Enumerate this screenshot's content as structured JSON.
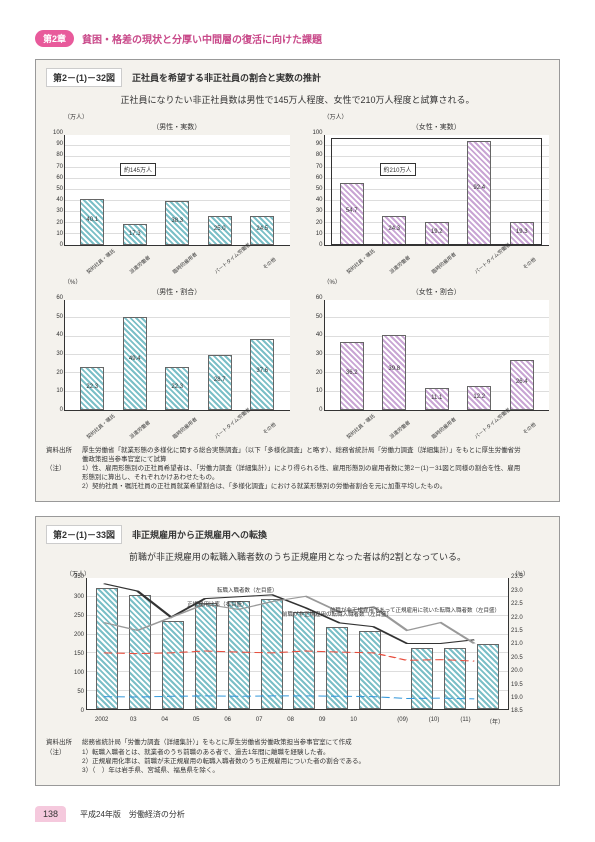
{
  "chapter": {
    "badge": "第2章",
    "title": "貧困・格差の現状と分厚い中間層の復活に向けた課題"
  },
  "figure32": {
    "num": "第2－(1)－32図",
    "title": "正社員を希望する非正社員の割合と実数の推計",
    "subtitle": "正社員になりたい非正社員数は男性で145万人程度、女性で210万人程度と試算される。",
    "charts": {
      "male_count": {
        "panel_label": "（男性・実数）",
        "unit": "（万人）",
        "categories": [
          "契約社員・嘱託",
          "派遣労働者",
          "臨時的雇用者",
          "パートタイム労働者",
          "その他"
        ],
        "values": [
          40.1,
          17.3,
          38.3,
          25.0,
          24.5
        ],
        "ylim": [
          0,
          100
        ],
        "ytick_step": 10,
        "bar_color": "#7bbfc7",
        "annotation": "約145万人"
      },
      "female_count": {
        "panel_label": "（女性・実数）",
        "unit": "（万人）",
        "categories": [
          "契約社員・嘱託",
          "派遣労働者",
          "臨時的雇用者",
          "パートタイム労働者",
          "その他"
        ],
        "values": [
          54.7,
          24.3,
          19.2,
          92.4,
          19.3
        ],
        "ylim": [
          0,
          100
        ],
        "ytick_step": 10,
        "bar_color": "#c9a5d4",
        "annotation": "約210万人"
      },
      "male_pct": {
        "panel_label": "（男性・割合）",
        "unit": "（%）",
        "categories": [
          "契約社員・嘱託",
          "派遣労働者",
          "臨時的雇用者",
          "パートタイム労働者",
          "その他"
        ],
        "values": [
          22.3,
          49.4,
          22.3,
          28.7,
          37.6
        ],
        "ylim": [
          0,
          60
        ],
        "ytick_step": 10,
        "bar_color": "#7bbfc7"
      },
      "female_pct": {
        "panel_label": "（女性・割合）",
        "unit": "（%）",
        "categories": [
          "契約社員・嘱託",
          "派遣労働者",
          "臨時的雇用者",
          "パートタイム労働者",
          "その他"
        ],
        "values": [
          36.2,
          39.8,
          11.1,
          12.2,
          26.4
        ],
        "ylim": [
          0,
          60
        ],
        "ytick_step": 10,
        "bar_color": "#c9a5d4"
      }
    },
    "source_label": "資料出所",
    "source": "厚生労働省「就業形態の多様化に関する総合実態調査」（以下「多様化調査」と略す）、総務省統計局「労働力調査（詳細集計）」をもとに厚生労働省労働政策担当参事官室にて試算",
    "notes_label": "（注）",
    "note1": "1）性、雇用形態別の正社員希望者は、「労働力調査（詳細集計）」により得られる性、雇用形態別の雇用者数に第2－(1)－31図と同様の割合を性、雇用形態別に算出し、それぞれかけあわせたもの。",
    "note2": "2）契約社員・嘱託社員の正社員就業希望割合は、「多様化調査」における就業形態別の労働者割合を元に加重平均したもの。"
  },
  "figure33": {
    "num": "第2－(1)－33図",
    "title": "非正規雇用から正規雇用への転換",
    "subtitle": "前職が非正規雇用の転職入職者数のうち正規雇用となった者は約2割となっている。",
    "left_unit": "（万人）",
    "right_unit": "（%）",
    "years": [
      "2002",
      "03",
      "04",
      "05",
      "06",
      "07",
      "08",
      "09",
      "10",
      "(09)",
      "(10)",
      "(11)"
    ],
    "year_suffix": "（年）",
    "bars": [
      320,
      300,
      230,
      280,
      285,
      290,
      255,
      215,
      205,
      160,
      160,
      170
    ],
    "left_ylim": [
      0,
      350
    ],
    "left_step": 50,
    "right_ylim": [
      18.5,
      23.5
    ],
    "right_step": 0.5,
    "line_solid_label": "転職入職者数（左目盛）",
    "line_gray_label": "正規雇用比率（右目盛）",
    "line_red_dash_label": "前職が非正規雇用の転職入職者数（左目盛）",
    "line_blue_dash_label": "前職が非正規雇用であって正規雇用に就いた転職入職者数（左目盛）",
    "colors": {
      "bar": "#7bbfc7",
      "line_solid": "#333333",
      "line_gray": "#999999",
      "line_red": "#e74c3c",
      "line_blue": "#3498db"
    },
    "source_label": "資料出所",
    "source": "総務省統計局「労働力調査（詳細集計）」をもとに厚生労働省労働政策担当参事官室にて作成",
    "notes_label": "（注）",
    "note1": "1）転職入職者とは、就業者のうち前職のある者で、過去1年間に離職を経験した者。",
    "note2": "2）正規雇用化率は、前職が未正規雇用の転職入職者数のうち正規雇用についた者の割合である。",
    "note3": "3）（　）年は岩手県、宮城県、福島県を除く。"
  },
  "page_number": "138",
  "footer": "平成24年版　労働経済の分析"
}
